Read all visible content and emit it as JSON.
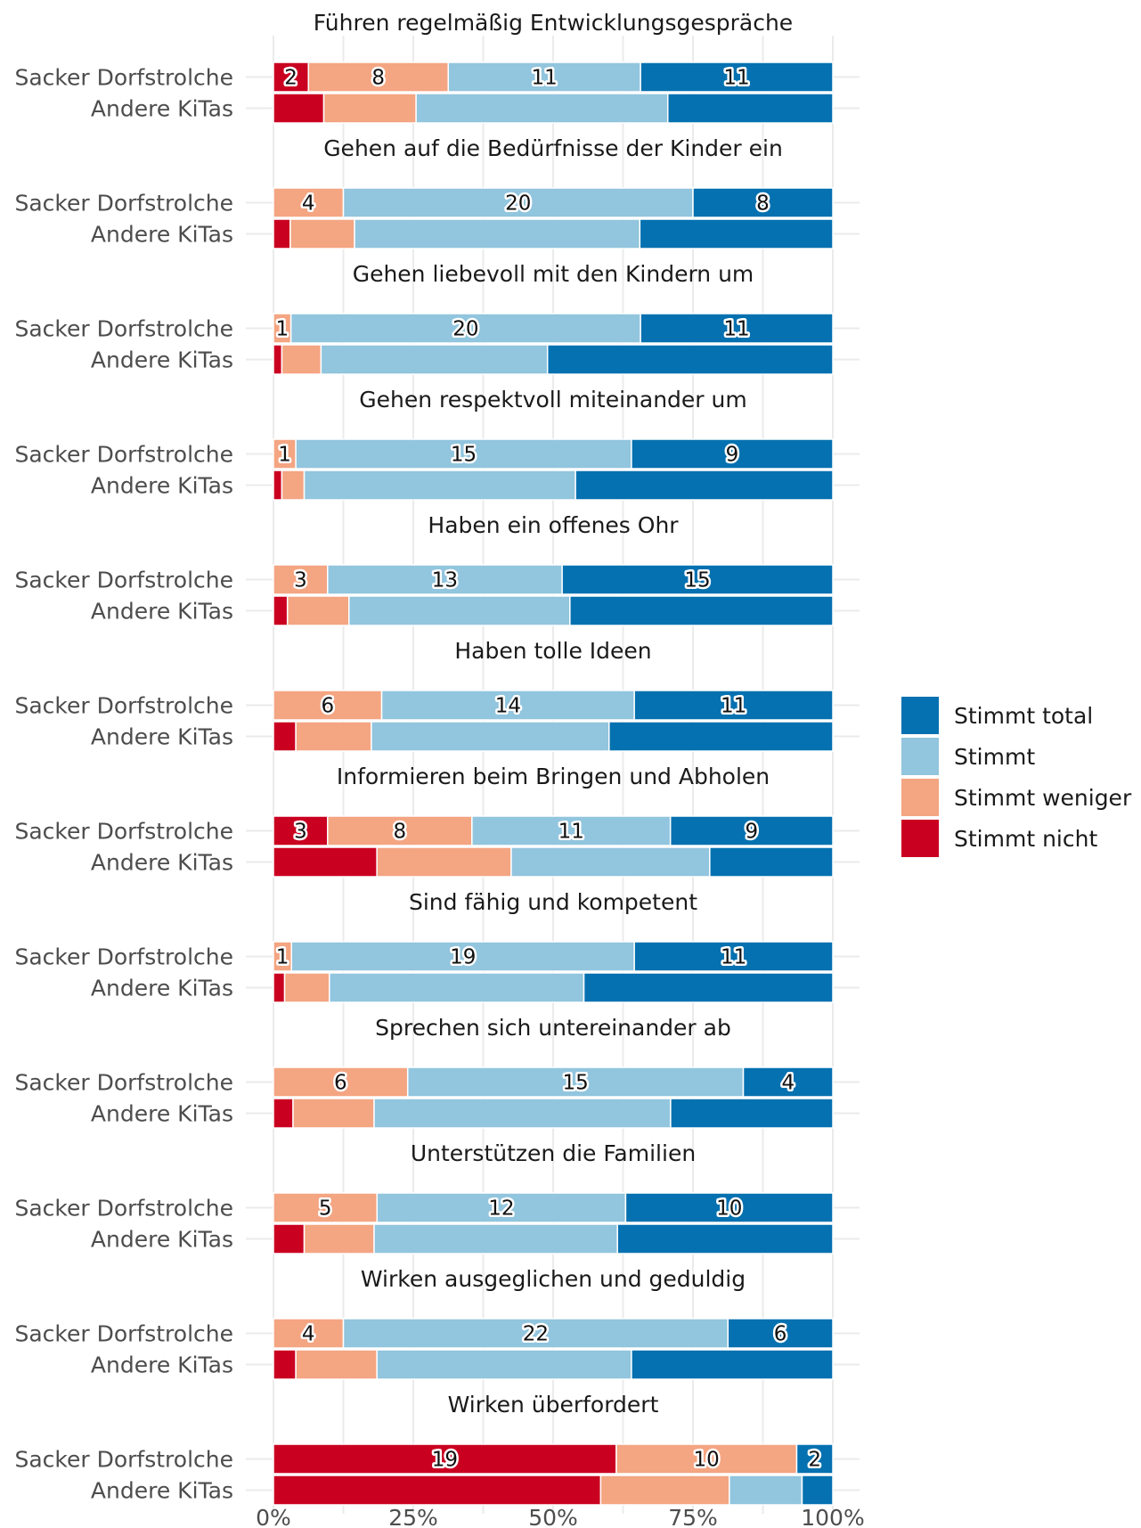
{
  "chart_data": {
    "type": "bar",
    "orientation": "horizontal",
    "stacked": "percent",
    "groups": [
      "Sacker Dorfstrolche",
      "Andere KiTas"
    ],
    "categories_order": [
      "Stimmt nicht",
      "Stimmt weniger",
      "Stimmt",
      "Stimmt total"
    ],
    "colors": {
      "Stimmt nicht": "#ca0020",
      "Stimmt weniger": "#f4a582",
      "Stimmt": "#92c5de",
      "Stimmt total": "#0571b0"
    },
    "legend": {
      "position": "right",
      "items": [
        "Stimmt total",
        "Stimmt",
        "Stimmt weniger",
        "Stimmt nicht"
      ]
    },
    "x_ticks": [
      "0%",
      "25%",
      "50%",
      "75%",
      "100%"
    ],
    "xlim": [
      0,
      100
    ],
    "grid": true,
    "panels": [
      {
        "title": "Führen regelmäßig Entwicklungsgespräche",
        "bars": [
          {
            "group": "Sacker Dorfstrolche",
            "counts": [
              2,
              8,
              11,
              11
            ],
            "labels": [
              "2",
              "8",
              "11",
              "11"
            ]
          },
          {
            "group": "Andere KiTas",
            "shares": [
              9,
              16.5,
              45,
              29.5
            ]
          }
        ]
      },
      {
        "title": "Gehen auf die Bedürfnisse der Kinder ein",
        "bars": [
          {
            "group": "Sacker Dorfstrolche",
            "counts": [
              0,
              4,
              20,
              8
            ],
            "labels": [
              "",
              "4",
              "20",
              "8"
            ]
          },
          {
            "group": "Andere KiTas",
            "shares": [
              3,
              11.5,
              51,
              34.5
            ]
          }
        ]
      },
      {
        "title": "Gehen liebevoll mit den Kindern um",
        "bars": [
          {
            "group": "Sacker Dorfstrolche",
            "counts": [
              0,
              1,
              20,
              11
            ],
            "labels": [
              "",
              "1",
              "20",
              "11"
            ]
          },
          {
            "group": "Andere KiTas",
            "shares": [
              1.5,
              7,
              40.5,
              51
            ]
          }
        ]
      },
      {
        "title": "Gehen respektvoll miteinander um",
        "bars": [
          {
            "group": "Sacker Dorfstrolche",
            "counts": [
              0,
              1,
              15,
              9
            ],
            "labels": [
              "",
              "1",
              "15",
              "9"
            ]
          },
          {
            "group": "Andere KiTas",
            "shares": [
              1.5,
              4,
              48.5,
              46
            ]
          }
        ]
      },
      {
        "title": "Haben ein offenes Ohr",
        "bars": [
          {
            "group": "Sacker Dorfstrolche",
            "counts": [
              0,
              3,
              13,
              15
            ],
            "labels": [
              "",
              "3",
              "13",
              "15"
            ]
          },
          {
            "group": "Andere KiTas",
            "shares": [
              2.5,
              11,
              39.5,
              47
            ]
          }
        ]
      },
      {
        "title": "Haben tolle Ideen",
        "bars": [
          {
            "group": "Sacker Dorfstrolche",
            "counts": [
              0,
              6,
              14,
              11
            ],
            "labels": [
              "",
              "6",
              "14",
              "11"
            ]
          },
          {
            "group": "Andere KiTas",
            "shares": [
              4,
              13.5,
              42.5,
              40
            ]
          }
        ]
      },
      {
        "title": "Informieren beim Bringen und Abholen",
        "bars": [
          {
            "group": "Sacker Dorfstrolche",
            "counts": [
              3,
              8,
              11,
              9
            ],
            "labels": [
              "3",
              "8",
              "11",
              "9"
            ]
          },
          {
            "group": "Andere KiTas",
            "shares": [
              18.5,
              24,
              35.5,
              22
            ]
          }
        ]
      },
      {
        "title": "Sind fähig und kompetent",
        "bars": [
          {
            "group": "Sacker Dorfstrolche",
            "counts": [
              0,
              1,
              19,
              11
            ],
            "labels": [
              "",
              "1",
              "19",
              "11"
            ]
          },
          {
            "group": "Andere KiTas",
            "shares": [
              2,
              8,
              45.5,
              44.5
            ]
          }
        ]
      },
      {
        "title": "Sprechen sich untereinander ab",
        "bars": [
          {
            "group": "Sacker Dorfstrolche",
            "counts": [
              0,
              6,
              15,
              4
            ],
            "labels": [
              "",
              "6",
              "15",
              "4"
            ]
          },
          {
            "group": "Andere KiTas",
            "shares": [
              3.5,
              14.5,
              53,
              29
            ]
          }
        ]
      },
      {
        "title": "Unterstützen die Familien",
        "bars": [
          {
            "group": "Sacker Dorfstrolche",
            "counts": [
              0,
              5,
              12,
              10
            ],
            "labels": [
              "",
              "5",
              "12",
              "10"
            ]
          },
          {
            "group": "Andere KiTas",
            "shares": [
              5.5,
              12.5,
              43.5,
              38.5
            ]
          }
        ]
      },
      {
        "title": "Wirken ausgeglichen und geduldig",
        "bars": [
          {
            "group": "Sacker Dorfstrolche",
            "counts": [
              0,
              4,
              22,
              6
            ],
            "labels": [
              "",
              "4",
              "22",
              "6"
            ]
          },
          {
            "group": "Andere KiTas",
            "shares": [
              4,
              14.5,
              45.5,
              36
            ]
          }
        ]
      },
      {
        "title": "Wirken überfordert",
        "bars": [
          {
            "group": "Sacker Dorfstrolche",
            "counts": [
              19,
              10,
              0,
              2
            ],
            "labels": [
              "19",
              "10",
              "",
              "2"
            ]
          },
          {
            "group": "Andere KiTas",
            "shares": [
              58.5,
              23,
              13,
              5.5
            ]
          }
        ]
      }
    ]
  }
}
